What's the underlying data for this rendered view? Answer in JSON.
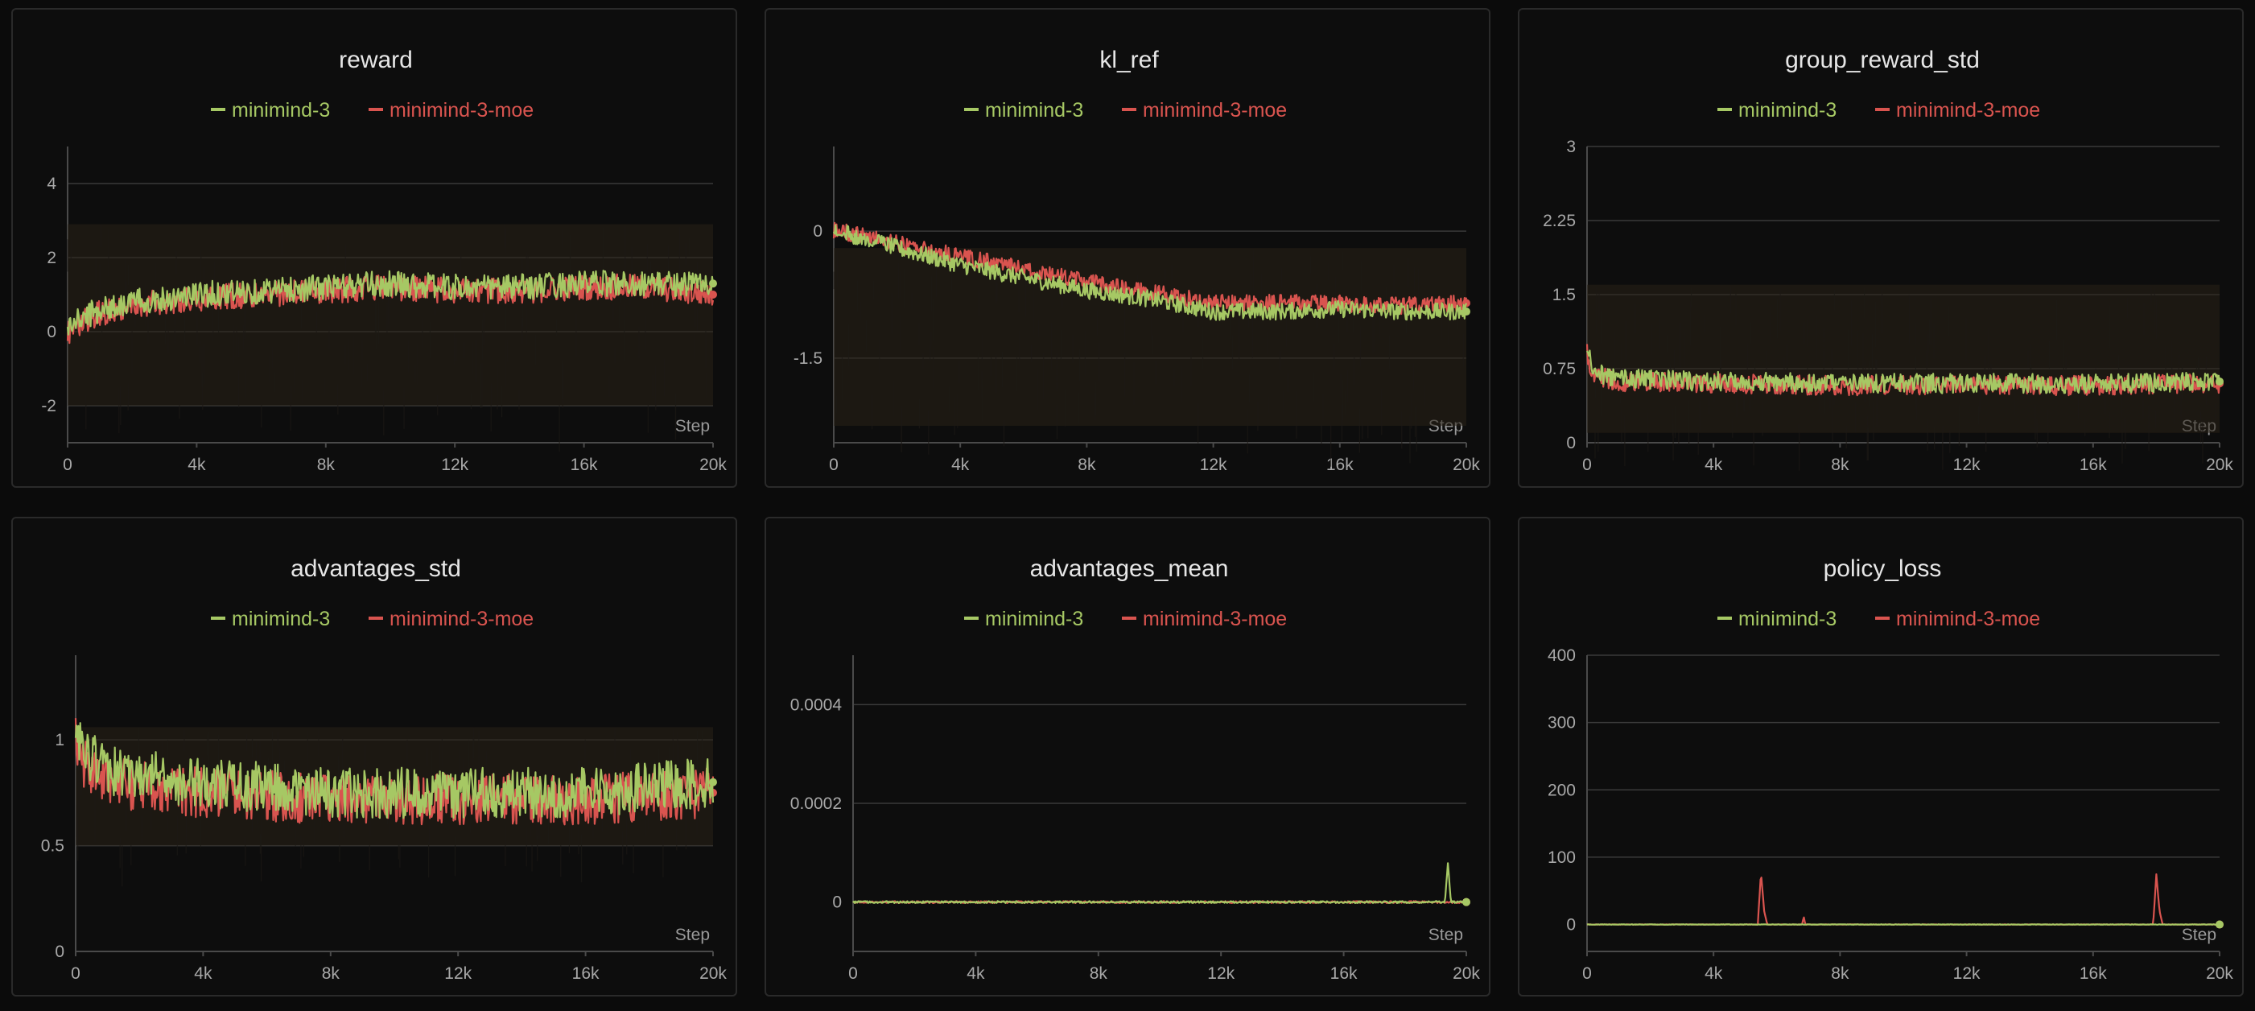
{
  "colors": {
    "series_a": "#a6c864",
    "series_b": "#d9544f",
    "band": "#2a2218",
    "grid": "#3a3a3a",
    "axis": "#4a4a4a"
  },
  "legend": [
    "minimind-3",
    "minimind-3-moe"
  ],
  "chart_data": [
    {
      "type": "line",
      "title": "reward",
      "xlabel": "Step",
      "xlim": [
        0,
        20000
      ],
      "ylim": [
        -3,
        5
      ],
      "x_ticks": [
        0,
        4000,
        8000,
        12000,
        16000,
        20000
      ],
      "x_tick_labels": [
        "0",
        "4k",
        "8k",
        "12k",
        "16k",
        "20k"
      ],
      "y_ticks": [
        -2,
        0,
        2,
        4
      ],
      "y_tick_labels": [
        "-2",
        "0",
        "2",
        "4"
      ],
      "series": [
        {
          "name": "minimind-3",
          "x": [
            0,
            500,
            1000,
            2000,
            4000,
            6000,
            8000,
            10000,
            12000,
            14000,
            16000,
            18000,
            20000
          ],
          "y": [
            0.1,
            0.4,
            0.6,
            0.8,
            1.0,
            1.1,
            1.2,
            1.3,
            1.2,
            1.2,
            1.3,
            1.3,
            1.3
          ],
          "noise": 0.35,
          "band": [
            -2.0,
            2.9
          ]
        },
        {
          "name": "minimind-3-moe",
          "x": [
            0,
            500,
            1000,
            2000,
            4000,
            6000,
            8000,
            10000,
            12000,
            14000,
            16000,
            18000,
            20000
          ],
          "y": [
            0.0,
            0.3,
            0.5,
            0.7,
            0.9,
            1.0,
            1.1,
            1.2,
            1.1,
            1.1,
            1.2,
            1.2,
            1.0
          ],
          "noise": 0.35
        }
      ]
    },
    {
      "type": "line",
      "title": "kl_ref",
      "xlabel": "Step",
      "xlim": [
        0,
        20000
      ],
      "ylim": [
        -2.5,
        1
      ],
      "x_ticks": [
        0,
        4000,
        8000,
        12000,
        16000,
        20000
      ],
      "x_tick_labels": [
        "0",
        "4k",
        "8k",
        "12k",
        "16k",
        "20k"
      ],
      "y_ticks": [
        -1.5,
        0
      ],
      "y_tick_labels": [
        "-1.5",
        "0"
      ],
      "series": [
        {
          "name": "minimind-3",
          "x": [
            0,
            1000,
            2000,
            4000,
            6000,
            8000,
            10000,
            12000,
            14000,
            16000,
            18000,
            20000
          ],
          "y": [
            0.0,
            -0.08,
            -0.2,
            -0.4,
            -0.55,
            -0.7,
            -0.8,
            -0.95,
            -0.95,
            -0.92,
            -0.95,
            -0.95
          ],
          "noise": 0.1,
          "band": [
            -2.3,
            -0.2
          ]
        },
        {
          "name": "minimind-3-moe",
          "x": [
            0,
            1000,
            2000,
            4000,
            6000,
            8000,
            10000,
            12000,
            14000,
            16000,
            18000,
            20000
          ],
          "y": [
            0.0,
            -0.05,
            -0.15,
            -0.3,
            -0.45,
            -0.6,
            -0.72,
            -0.85,
            -0.85,
            -0.85,
            -0.88,
            -0.85
          ],
          "noise": 0.1
        }
      ]
    },
    {
      "type": "line",
      "title": "group_reward_std",
      "xlabel": "Step",
      "xlim": [
        0,
        20000
      ],
      "ylim": [
        0,
        3
      ],
      "x_ticks": [
        0,
        4000,
        8000,
        12000,
        16000,
        20000
      ],
      "x_tick_labels": [
        "0",
        "4k",
        "8k",
        "12k",
        "16k",
        "20k"
      ],
      "y_ticks": [
        0,
        0.75,
        1.5,
        2.25,
        3
      ],
      "y_tick_labels": [
        "0",
        "0.75",
        "1.5",
        "2.25",
        "3"
      ],
      "series": [
        {
          "name": "minimind-3",
          "x": [
            0,
            200,
            1000,
            4000,
            8000,
            12000,
            16000,
            20000
          ],
          "y": [
            0.95,
            0.7,
            0.65,
            0.62,
            0.6,
            0.6,
            0.6,
            0.62
          ],
          "noise": 0.1,
          "band": [
            0.1,
            1.6
          ]
        },
        {
          "name": "minimind-3-moe",
          "x": [
            0,
            200,
            1000,
            4000,
            8000,
            12000,
            16000,
            20000
          ],
          "y": [
            0.9,
            0.68,
            0.62,
            0.6,
            0.58,
            0.58,
            0.58,
            0.6
          ],
          "noise": 0.1
        }
      ]
    },
    {
      "type": "line",
      "title": "advantages_std",
      "xlabel": "Step",
      "xlim": [
        0,
        20000
      ],
      "ylim": [
        0,
        1.4
      ],
      "x_ticks": [
        0,
        4000,
        8000,
        12000,
        16000,
        20000
      ],
      "x_tick_labels": [
        "0",
        "4k",
        "8k",
        "12k",
        "16k",
        "20k"
      ],
      "y_ticks": [
        0,
        0.5,
        1
      ],
      "y_tick_labels": [
        "0",
        "0.5",
        "1"
      ],
      "series": [
        {
          "name": "minimind-3",
          "x": [
            0,
            200,
            1000,
            4000,
            8000,
            12000,
            16000,
            20000
          ],
          "y": [
            1.05,
            0.95,
            0.85,
            0.8,
            0.75,
            0.75,
            0.75,
            0.8
          ],
          "noise": 0.12,
          "band": [
            0.5,
            1.06
          ]
        },
        {
          "name": "minimind-3-moe",
          "x": [
            0,
            200,
            1000,
            4000,
            8000,
            12000,
            16000,
            20000
          ],
          "y": [
            1.0,
            0.9,
            0.8,
            0.75,
            0.72,
            0.72,
            0.72,
            0.75
          ],
          "noise": 0.12
        }
      ]
    },
    {
      "type": "line",
      "title": "advantages_mean",
      "xlabel": "Step",
      "xlim": [
        0,
        20000
      ],
      "ylim": [
        -0.0001,
        0.0005
      ],
      "x_ticks": [
        0,
        4000,
        8000,
        12000,
        16000,
        20000
      ],
      "x_tick_labels": [
        "0",
        "4k",
        "8k",
        "12k",
        "16k",
        "20k"
      ],
      "y_ticks": [
        0,
        0.0002,
        0.0004
      ],
      "y_tick_labels": [
        "0",
        "0.0002",
        "0.0004"
      ],
      "series": [
        {
          "name": "minimind-3",
          "x": [
            0,
            4000,
            8000,
            12000,
            16000,
            19300,
            19400,
            19500,
            20000
          ],
          "y": [
            0,
            0,
            0,
            0,
            0,
            0,
            8e-05,
            0,
            0
          ],
          "noise": 2e-06
        },
        {
          "name": "minimind-3-moe",
          "x": [
            0,
            4000,
            8000,
            12000,
            16000,
            20000
          ],
          "y": [
            0,
            0,
            0,
            0,
            0,
            0
          ],
          "noise": 2e-06
        }
      ]
    },
    {
      "type": "line",
      "title": "policy_loss",
      "xlabel": "Step",
      "xlim": [
        0,
        20000
      ],
      "ylim": [
        -40,
        400
      ],
      "x_ticks": [
        0,
        4000,
        8000,
        12000,
        16000,
        20000
      ],
      "x_tick_labels": [
        "0",
        "4k",
        "8k",
        "12k",
        "16k",
        "20k"
      ],
      "y_ticks": [
        0,
        100,
        200,
        300,
        400
      ],
      "y_tick_labels": [
        "0",
        "100",
        "200",
        "300",
        "400"
      ],
      "series": [
        {
          "name": "minimind-3",
          "x": [
            0,
            4000,
            8000,
            12000,
            16000,
            20000
          ],
          "y": [
            0,
            0,
            0,
            0,
            0,
            0
          ],
          "noise": 0.3
        },
        {
          "name": "minimind-3-moe",
          "x": [
            0,
            5400,
            5500,
            5600,
            5700,
            6800,
            6850,
            6900,
            17900,
            18000,
            18100,
            18200,
            20000
          ],
          "y": [
            0,
            0,
            78,
            20,
            0,
            0,
            12,
            0,
            0,
            75,
            20,
            0,
            0
          ],
          "noise": 0.3
        }
      ]
    }
  ]
}
